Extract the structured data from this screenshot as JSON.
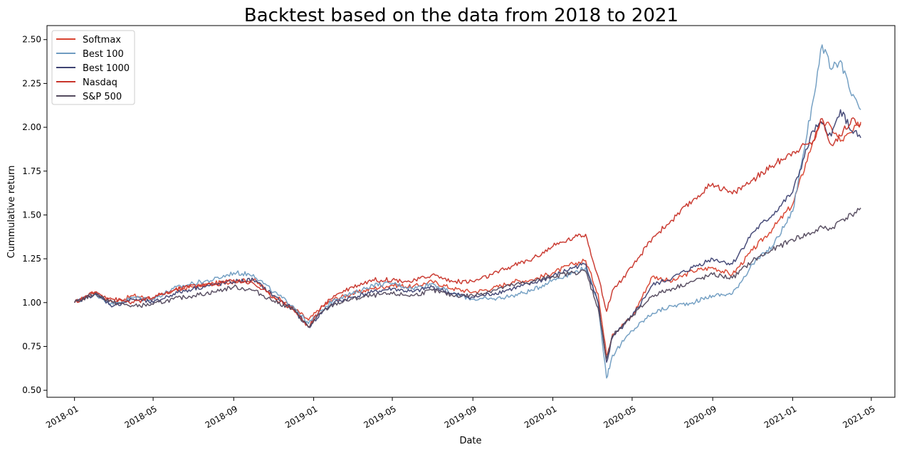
{
  "chart_data": {
    "type": "line",
    "title": "Backtest based on the data from 2018 to 2021",
    "xlabel": "Date",
    "ylabel": "Cummulative return",
    "xlim": [
      "2017-11-20",
      "2021-06-06"
    ],
    "ylim": [
      0.46,
      2.58
    ],
    "x_ticks": [
      "2018-01",
      "2018-05",
      "2018-09",
      "2019-01",
      "2019-05",
      "2019-09",
      "2020-01",
      "2020-05",
      "2020-09",
      "2021-01",
      "2021-05"
    ],
    "y_ticks": [
      0.5,
      0.75,
      1.0,
      1.25,
      1.5,
      1.75,
      2.0,
      2.25,
      2.5
    ],
    "y_tick_labels": [
      "0.50",
      "0.75",
      "1.00",
      "1.25",
      "1.50",
      "1.75",
      "2.00",
      "2.25",
      "2.50"
    ],
    "grid": false,
    "legend_position": "top-left",
    "x": [
      "2018-01-01",
      "2018-02-01",
      "2018-03-01",
      "2018-04-01",
      "2018-05-01",
      "2018-06-01",
      "2018-07-01",
      "2018-08-01",
      "2018-09-01",
      "2018-10-01",
      "2018-11-01",
      "2018-12-01",
      "2018-12-24",
      "2019-01-15",
      "2019-02-01",
      "2019-03-01",
      "2019-04-01",
      "2019-05-01",
      "2019-06-01",
      "2019-07-01",
      "2019-08-01",
      "2019-09-01",
      "2019-10-01",
      "2019-11-01",
      "2019-12-01",
      "2020-01-01",
      "2020-02-01",
      "2020-02-20",
      "2020-03-10",
      "2020-03-23",
      "2020-04-01",
      "2020-05-01",
      "2020-06-01",
      "2020-07-01",
      "2020-08-01",
      "2020-09-01",
      "2020-10-01",
      "2020-11-01",
      "2020-12-01",
      "2021-01-01",
      "2021-02-01",
      "2021-02-15",
      "2021-03-01",
      "2021-03-15",
      "2021-04-01",
      "2021-04-15"
    ],
    "series": [
      {
        "name": "Softmax",
        "color": "#d9432f",
        "values": [
          1.0,
          1.06,
          1.0,
          1.04,
          1.02,
          1.07,
          1.09,
          1.11,
          1.12,
          1.13,
          1.04,
          0.97,
          0.9,
          0.98,
          1.02,
          1.05,
          1.08,
          1.1,
          1.09,
          1.12,
          1.08,
          1.06,
          1.08,
          1.12,
          1.13,
          1.17,
          1.22,
          1.24,
          1.05,
          0.7,
          0.82,
          0.92,
          1.15,
          1.12,
          1.18,
          1.2,
          1.16,
          1.3,
          1.42,
          1.56,
          1.92,
          2.03,
          2.0,
          1.92,
          1.97,
          2.03
        ]
      },
      {
        "name": "Best 100",
        "color": "#6f9cc1",
        "values": [
          1.0,
          1.05,
          0.99,
          1.03,
          1.02,
          1.08,
          1.11,
          1.13,
          1.17,
          1.16,
          1.06,
          0.98,
          0.88,
          0.96,
          1.02,
          1.05,
          1.1,
          1.11,
          1.08,
          1.11,
          1.05,
          1.02,
          1.02,
          1.04,
          1.07,
          1.13,
          1.17,
          1.2,
          1.0,
          0.57,
          0.7,
          0.84,
          0.94,
          0.98,
          1.0,
          1.04,
          1.05,
          1.22,
          1.32,
          1.52,
          2.15,
          2.47,
          2.33,
          2.38,
          2.18,
          2.1
        ]
      },
      {
        "name": "Best 1000",
        "color": "#3f4373",
        "values": [
          1.0,
          1.05,
          0.98,
          1.02,
          1.0,
          1.05,
          1.08,
          1.1,
          1.12,
          1.13,
          1.04,
          0.96,
          0.86,
          0.95,
          1.0,
          1.03,
          1.06,
          1.08,
          1.06,
          1.09,
          1.05,
          1.03,
          1.05,
          1.08,
          1.11,
          1.15,
          1.2,
          1.22,
          1.0,
          0.66,
          0.8,
          0.92,
          1.1,
          1.14,
          1.2,
          1.25,
          1.22,
          1.4,
          1.5,
          1.63,
          1.98,
          2.02,
          1.95,
          2.1,
          1.98,
          1.94
        ]
      },
      {
        "name": "Nasdaq",
        "color": "#c8342a",
        "values": [
          1.0,
          1.06,
          1.02,
          1.0,
          1.03,
          1.07,
          1.1,
          1.1,
          1.13,
          1.11,
          1.03,
          0.96,
          0.86,
          0.98,
          1.04,
          1.09,
          1.13,
          1.13,
          1.12,
          1.16,
          1.12,
          1.12,
          1.16,
          1.21,
          1.25,
          1.32,
          1.37,
          1.39,
          1.15,
          0.95,
          1.07,
          1.2,
          1.37,
          1.47,
          1.58,
          1.68,
          1.62,
          1.7,
          1.78,
          1.86,
          1.92,
          2.05,
          1.9,
          1.95,
          2.05,
          2.02
        ]
      },
      {
        "name": "S&P 500",
        "color": "#544a5e",
        "values": [
          1.0,
          1.05,
          1.0,
          0.98,
          0.99,
          1.02,
          1.04,
          1.06,
          1.09,
          1.07,
          1.01,
          0.96,
          0.86,
          0.95,
          0.99,
          1.02,
          1.04,
          1.05,
          1.04,
          1.07,
          1.04,
          1.04,
          1.07,
          1.1,
          1.12,
          1.15,
          1.17,
          1.18,
          0.97,
          0.68,
          0.81,
          0.92,
          1.04,
          1.08,
          1.12,
          1.16,
          1.14,
          1.24,
          1.3,
          1.36,
          1.4,
          1.43,
          1.42,
          1.47,
          1.5,
          1.54
        ]
      }
    ]
  }
}
